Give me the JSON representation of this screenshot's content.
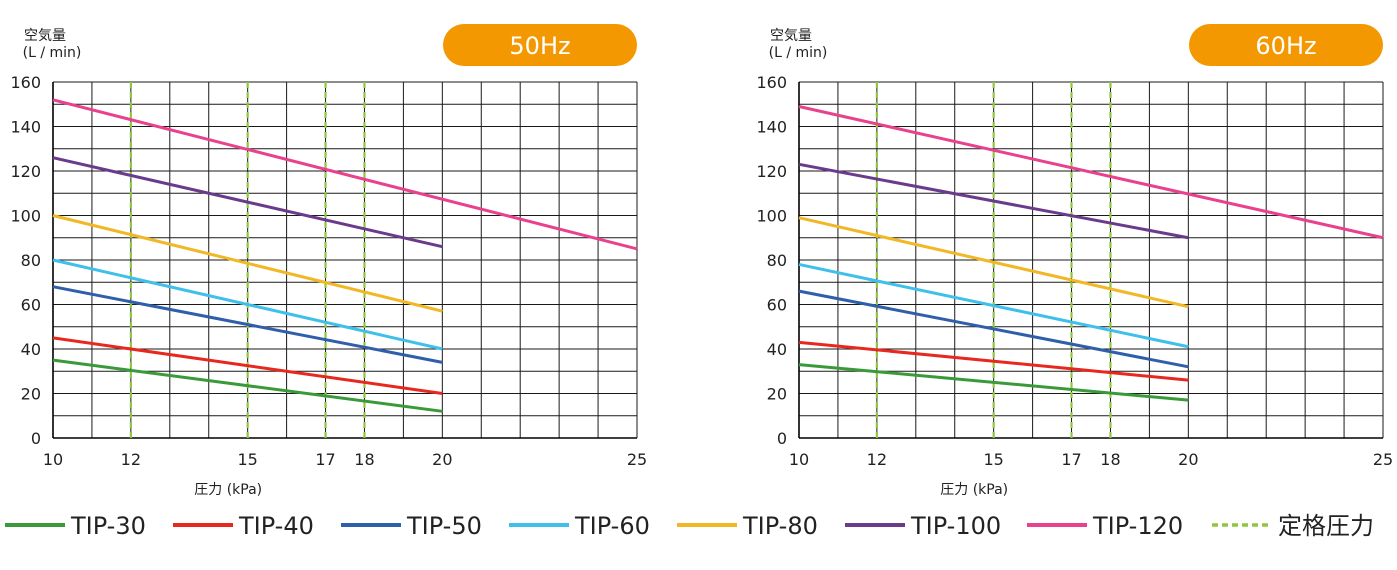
{
  "colors": {
    "TIP-30": "#3a9a3a",
    "TIP-40": "#e8281e",
    "TIP-50": "#2f5eaa",
    "TIP-60": "#3ec0ea",
    "TIP-80": "#f2b724",
    "TIP-100": "#6a3a8c",
    "TIP-120": "#e8418e",
    "rated": "#8fc641",
    "badge": "#f39800",
    "grid": "#1a1a1a"
  },
  "legend": [
    {
      "key": "TIP-30",
      "label": "TIP-30",
      "style": "solid"
    },
    {
      "key": "TIP-40",
      "label": "TIP-40",
      "style": "solid"
    },
    {
      "key": "TIP-50",
      "label": "TIP-50",
      "style": "solid"
    },
    {
      "key": "TIP-60",
      "label": "TIP-60",
      "style": "solid"
    },
    {
      "key": "TIP-80",
      "label": "TIP-80",
      "style": "solid"
    },
    {
      "key": "TIP-100",
      "label": "TIP-100",
      "style": "solid"
    },
    {
      "key": "TIP-120",
      "label": "TIP-120",
      "style": "solid"
    },
    {
      "key": "rated",
      "label": "定格圧力",
      "style": "dashed"
    }
  ],
  "chart_data": [
    {
      "type": "line",
      "badge": "50Hz",
      "ylabel_line1": "空気量",
      "ylabel_line2": "(L / min)",
      "xlabel": "圧力 (kPa)",
      "xlim": [
        10,
        25
      ],
      "ylim": [
        0,
        160
      ],
      "x_ticks": [
        10,
        12,
        15,
        17,
        18,
        20,
        25
      ],
      "y_ticks": [
        0,
        20,
        40,
        60,
        80,
        100,
        120,
        140,
        160
      ],
      "grid": true,
      "rated_pressure_lines": [
        12,
        15,
        17,
        18
      ],
      "series": [
        {
          "name": "TIP-30",
          "x": [
            10,
            20
          ],
          "y": [
            35,
            12
          ]
        },
        {
          "name": "TIP-40",
          "x": [
            10,
            20
          ],
          "y": [
            45,
            20
          ]
        },
        {
          "name": "TIP-50",
          "x": [
            10,
            20
          ],
          "y": [
            68,
            34
          ]
        },
        {
          "name": "TIP-60",
          "x": [
            10,
            20
          ],
          "y": [
            80,
            40
          ]
        },
        {
          "name": "TIP-80",
          "x": [
            10,
            20
          ],
          "y": [
            100,
            57
          ]
        },
        {
          "name": "TIP-100",
          "x": [
            10,
            20
          ],
          "y": [
            126,
            86
          ]
        },
        {
          "name": "TIP-120",
          "x": [
            10,
            25
          ],
          "y": [
            152,
            85
          ]
        }
      ]
    },
    {
      "type": "line",
      "badge": "60Hz",
      "ylabel_line1": "空気量",
      "ylabel_line2": "(L / min)",
      "xlabel": "圧力 (kPa)",
      "xlim": [
        10,
        25
      ],
      "ylim": [
        0,
        160
      ],
      "x_ticks": [
        10,
        12,
        15,
        17,
        18,
        20,
        25
      ],
      "y_ticks": [
        0,
        20,
        40,
        60,
        80,
        100,
        120,
        140,
        160
      ],
      "grid": true,
      "rated_pressure_lines": [
        12,
        15,
        17,
        18
      ],
      "series": [
        {
          "name": "TIP-30",
          "x": [
            10,
            20
          ],
          "y": [
            33,
            17
          ]
        },
        {
          "name": "TIP-40",
          "x": [
            10,
            20
          ],
          "y": [
            43,
            26
          ]
        },
        {
          "name": "TIP-50",
          "x": [
            10,
            20
          ],
          "y": [
            66,
            32
          ]
        },
        {
          "name": "TIP-60",
          "x": [
            10,
            20
          ],
          "y": [
            78,
            41
          ]
        },
        {
          "name": "TIP-80",
          "x": [
            10,
            20
          ],
          "y": [
            99,
            59
          ]
        },
        {
          "name": "TIP-100",
          "x": [
            10,
            20
          ],
          "y": [
            123,
            90
          ]
        },
        {
          "name": "TIP-120",
          "x": [
            10,
            25
          ],
          "y": [
            149,
            90
          ]
        }
      ]
    }
  ]
}
